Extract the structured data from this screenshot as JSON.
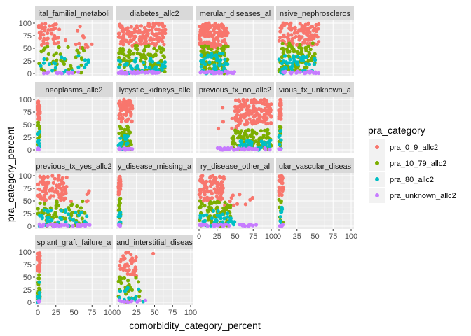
{
  "chart_data": {
    "type": "scatter",
    "title": "",
    "xlabel": "comorbidity_category_percent",
    "ylabel": "pra_category_percent",
    "xlim": [
      0,
      100
    ],
    "ylim": [
      0,
      100
    ],
    "x_ticks": [
      "0",
      "25",
      "50",
      "75",
      "100"
    ],
    "y_ticks": [
      "0",
      "25",
      "50",
      "75",
      "100"
    ],
    "grid": true,
    "legend": {
      "title": "pra_category",
      "position": "right",
      "entries": [
        {
          "name": "pra_0_9_allc2",
          "color": "#F8766D"
        },
        {
          "name": "pra_10_79_allc2",
          "color": "#7CAE00"
        },
        {
          "name": "pra_80_allc2",
          "color": "#00BFC4"
        },
        {
          "name": "pra_unknown_allc2",
          "color": "#C77CFF"
        }
      ]
    },
    "facets": [
      {
        "label": "ital_familial_metaboli",
        "clusters": [
          {
            "s": 0,
            "x": [
              0,
              30
            ],
            "y": [
              55,
              100
            ],
            "n": 45
          },
          {
            "s": 0,
            "x": [
              35,
              75
            ],
            "y": [
              50,
              95
            ],
            "n": 12
          },
          {
            "s": 1,
            "x": [
              0,
              65
            ],
            "y": [
              0,
              55
            ],
            "n": 40
          },
          {
            "s": 2,
            "x": [
              0,
              70
            ],
            "y": [
              0,
              35
            ],
            "n": 20
          },
          {
            "s": 3,
            "x": [
              0,
              75
            ],
            "y": [
              0,
              3
            ],
            "n": 15
          }
        ]
      },
      {
        "label": "diabetes_allc2",
        "clusters": [
          {
            "s": 0,
            "x": [
              0,
              65
            ],
            "y": [
              55,
              100
            ],
            "n": 140
          },
          {
            "s": 1,
            "x": [
              0,
              65
            ],
            "y": [
              0,
              55
            ],
            "n": 110
          },
          {
            "s": 2,
            "x": [
              0,
              65
            ],
            "y": [
              0,
              30
            ],
            "n": 50
          },
          {
            "s": 3,
            "x": [
              0,
              60
            ],
            "y": [
              0,
              4
            ],
            "n": 40
          }
        ]
      },
      {
        "label": "merular_diseases_al",
        "clusters": [
          {
            "s": 0,
            "x": [
              0,
              40
            ],
            "y": [
              50,
              100
            ],
            "n": 130
          },
          {
            "s": 1,
            "x": [
              0,
              40
            ],
            "y": [
              0,
              55
            ],
            "n": 90
          },
          {
            "s": 2,
            "x": [
              0,
              40
            ],
            "y": [
              0,
              40
            ],
            "n": 45
          },
          {
            "s": 3,
            "x": [
              0,
              50
            ],
            "y": [
              0,
              4
            ],
            "n": 30
          }
        ]
      },
      {
        "label": "nsive_nephroscleros",
        "clusters": [
          {
            "s": 0,
            "x": [
              0,
              55
            ],
            "y": [
              55,
              100
            ],
            "n": 110
          },
          {
            "s": 1,
            "x": [
              0,
              50
            ],
            "y": [
              0,
              60
            ],
            "n": 90
          },
          {
            "s": 2,
            "x": [
              0,
              55
            ],
            "y": [
              0,
              35
            ],
            "n": 45
          },
          {
            "s": 3,
            "x": [
              0,
              55
            ],
            "y": [
              0,
              4
            ],
            "n": 25
          }
        ]
      },
      {
        "label": "neoplasms_allc2",
        "clusters": [
          {
            "s": 0,
            "x": [
              0,
              3
            ],
            "y": [
              60,
              100
            ],
            "n": 30
          },
          {
            "s": 1,
            "x": [
              0,
              3
            ],
            "y": [
              5,
              55
            ],
            "n": 14
          },
          {
            "s": 2,
            "x": [
              0,
              3
            ],
            "y": [
              0,
              45
            ],
            "n": 8
          },
          {
            "s": 3,
            "x": [
              0,
              3
            ],
            "y": [
              0,
              3
            ],
            "n": 4
          }
        ]
      },
      {
        "label": "lycystic_kidneys_allc",
        "clusters": [
          {
            "s": 0,
            "x": [
              0,
              20
            ],
            "y": [
              55,
              100
            ],
            "n": 60
          },
          {
            "s": 1,
            "x": [
              0,
              18
            ],
            "y": [
              0,
              50
            ],
            "n": 40
          },
          {
            "s": 2,
            "x": [
              0,
              15
            ],
            "y": [
              0,
              30
            ],
            "n": 15
          },
          {
            "s": 3,
            "x": [
              0,
              20
            ],
            "y": [
              0,
              3
            ],
            "n": 12
          }
        ]
      },
      {
        "label": "previous_tx_no_allc2",
        "clusters": [
          {
            "s": 0,
            "x": [
              50,
              100
            ],
            "y": [
              50,
              100
            ],
            "n": 150
          },
          {
            "s": 0,
            "x": [
              25,
              55
            ],
            "y": [
              40,
              90
            ],
            "n": 10
          },
          {
            "s": 1,
            "x": [
              45,
              100
            ],
            "y": [
              0,
              40
            ],
            "n": 90
          },
          {
            "s": 2,
            "x": [
              55,
              100
            ],
            "y": [
              0,
              20
            ],
            "n": 40
          },
          {
            "s": 3,
            "x": [
              25,
              100
            ],
            "y": [
              0,
              4
            ],
            "n": 40
          }
        ]
      },
      {
        "label": "vious_tx_unknown_a",
        "clusters": [
          {
            "s": 0,
            "x": [
              0,
              3
            ],
            "y": [
              60,
              100
            ],
            "n": 35
          },
          {
            "s": 1,
            "x": [
              0,
              3
            ],
            "y": [
              5,
              55
            ],
            "n": 14
          },
          {
            "s": 2,
            "x": [
              0,
              3
            ],
            "y": [
              0,
              40
            ],
            "n": 8
          },
          {
            "s": 3,
            "x": [
              0,
              3
            ],
            "y": [
              0,
              3
            ],
            "n": 4
          }
        ]
      },
      {
        "label": "previous_tx_yes_allc2",
        "clusters": [
          {
            "s": 0,
            "x": [
              0,
              40
            ],
            "y": [
              50,
              100
            ],
            "n": 90
          },
          {
            "s": 0,
            "x": [
              40,
              75
            ],
            "y": [
              45,
              75
            ],
            "n": 6
          },
          {
            "s": 1,
            "x": [
              0,
              65
            ],
            "y": [
              0,
              50
            ],
            "n": 70
          },
          {
            "s": 2,
            "x": [
              0,
              70
            ],
            "y": [
              0,
              35
            ],
            "n": 35
          },
          {
            "s": 3,
            "x": [
              0,
              75
            ],
            "y": [
              0,
              4
            ],
            "n": 40
          }
        ]
      },
      {
        "label": "y_disease_missing_a",
        "clusters": [
          {
            "s": 0,
            "x": [
              0,
              3
            ],
            "y": [
              60,
              100
            ],
            "n": 30
          },
          {
            "s": 1,
            "x": [
              0,
              3
            ],
            "y": [
              5,
              55
            ],
            "n": 14
          },
          {
            "s": 2,
            "x": [
              0,
              3
            ],
            "y": [
              0,
              40
            ],
            "n": 8
          },
          {
            "s": 3,
            "x": [
              0,
              3
            ],
            "y": [
              0,
              3
            ],
            "n": 4
          }
        ]
      },
      {
        "label": "ry_disease_other_al",
        "clusters": [
          {
            "s": 0,
            "x": [
              0,
              35
            ],
            "y": [
              50,
              100
            ],
            "n": 100
          },
          {
            "s": 0,
            "x": [
              35,
              75
            ],
            "y": [
              40,
              75
            ],
            "n": 10
          },
          {
            "s": 1,
            "x": [
              0,
              45
            ],
            "y": [
              0,
              50
            ],
            "n": 70
          },
          {
            "s": 2,
            "x": [
              0,
              50
            ],
            "y": [
              0,
              30
            ],
            "n": 35
          },
          {
            "s": 3,
            "x": [
              0,
              80
            ],
            "y": [
              0,
              4
            ],
            "n": 35
          }
        ]
      },
      {
        "label": "ular_vascular_diseas",
        "clusters": [
          {
            "s": 0,
            "x": [
              0,
              6
            ],
            "y": [
              55,
              100
            ],
            "n": 28
          },
          {
            "s": 1,
            "x": [
              0,
              6
            ],
            "y": [
              5,
              55
            ],
            "n": 14
          },
          {
            "s": 2,
            "x": [
              0,
              6
            ],
            "y": [
              0,
              40
            ],
            "n": 8
          },
          {
            "s": 3,
            "x": [
              0,
              6
            ],
            "y": [
              0,
              3
            ],
            "n": 5
          }
        ]
      },
      {
        "label": "splant_graft_failure_a",
        "clusters": [
          {
            "s": 0,
            "x": [
              0,
              3
            ],
            "y": [
              60,
              100
            ],
            "n": 40
          },
          {
            "s": 1,
            "x": [
              0,
              3
            ],
            "y": [
              5,
              55
            ],
            "n": 16
          },
          {
            "s": 2,
            "x": [
              0,
              3
            ],
            "y": [
              0,
              45
            ],
            "n": 9
          },
          {
            "s": 3,
            "x": [
              0,
              3
            ],
            "y": [
              0,
              3
            ],
            "n": 4
          }
        ]
      },
      {
        "label": "and_interstitial_diseas",
        "clusters": [
          {
            "s": 0,
            "x": [
              0,
              25
            ],
            "y": [
              50,
              100
            ],
            "n": 40
          },
          {
            "s": 0,
            "x": [
              45,
              55
            ],
            "y": [
              95,
              100
            ],
            "n": 1
          },
          {
            "s": 1,
            "x": [
              0,
              30
            ],
            "y": [
              0,
              50
            ],
            "n": 30
          },
          {
            "s": 2,
            "x": [
              0,
              35
            ],
            "y": [
              0,
              30
            ],
            "n": 14
          },
          {
            "s": 3,
            "x": [
              0,
              50
            ],
            "y": [
              0,
              4
            ],
            "n": 10
          }
        ]
      }
    ]
  }
}
